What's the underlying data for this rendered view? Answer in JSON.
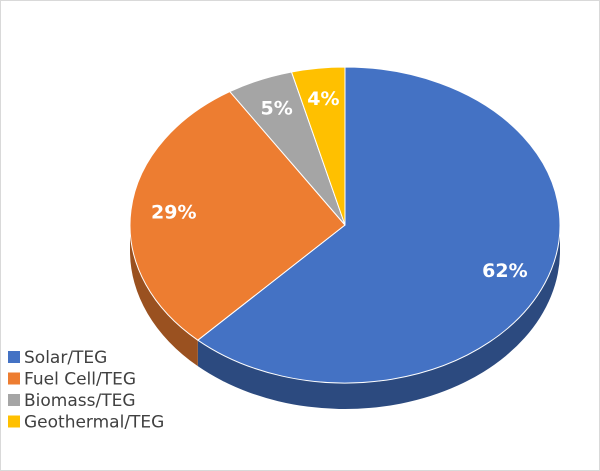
{
  "chart_data": {
    "type": "pie",
    "categories": [
      "Solar/TEG",
      "Fuel Cell/TEG",
      "Biomass/TEG",
      "Geothermal/TEG"
    ],
    "values": [
      62,
      29,
      5,
      4
    ],
    "value_labels": [
      "62%",
      "29%",
      "5%",
      "4%"
    ],
    "colors": [
      "#4472c4",
      "#ed7d31",
      "#a5a5a5",
      "#ffc000"
    ],
    "legend": "bottom-left"
  }
}
